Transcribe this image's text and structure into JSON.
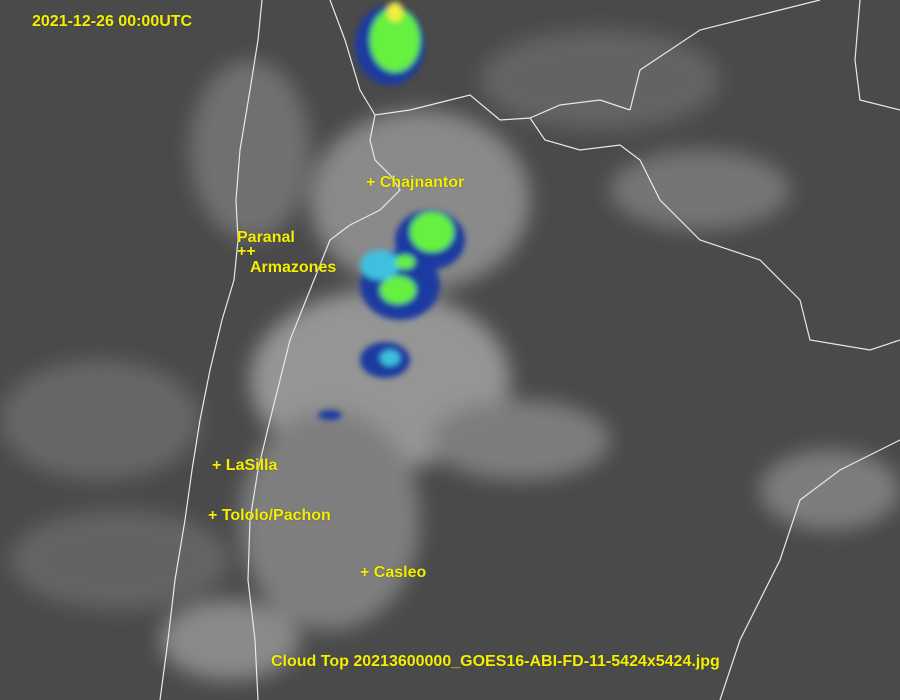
{
  "timestamp": "2021-12-26 00:00UTC",
  "caption": "Cloud Top 20213600000_GOES16-ABI-FD-11-5424x5424.jpg",
  "sites": [
    {
      "name": "Chajnantor",
      "marker": "+ Chajnantor"
    },
    {
      "name": "Paranal",
      "marker": "Paranal"
    },
    {
      "name": "Paranal/Armazones markers",
      "marker": "++"
    },
    {
      "name": "Armazones",
      "marker": "Armazones"
    },
    {
      "name": "LaSilla",
      "marker": "+ LaSilla"
    },
    {
      "name": "Tololo/Pachon",
      "marker": "+ Tololo/Pachon"
    },
    {
      "name": "Casleo",
      "marker": "+ Casleo"
    }
  ],
  "colors": {
    "label": "#f5f000",
    "background": "#4a4a4a",
    "border": "#e8e8e8",
    "storm_core": "#66f040",
    "storm_edge": "#1a3aa0",
    "storm_cold": "#40c0e0"
  }
}
